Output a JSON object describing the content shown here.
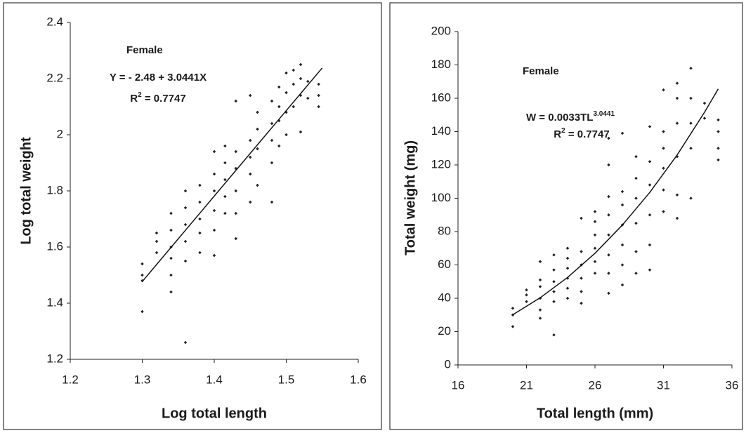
{
  "chart_data": [
    {
      "type": "scatter",
      "xlabel": "Log total length",
      "ylabel": "Log total weight",
      "annotations": {
        "label": "Female",
        "equation": "Y = - 2.48 + 3.0441X",
        "r2": {
          "base": "R",
          "sup": "2",
          "tail": " = 0.7747"
        }
      },
      "x": [
        1.3,
        1.3,
        1.3,
        1.3,
        1.32,
        1.32,
        1.32,
        1.34,
        1.34,
        1.34,
        1.34,
        1.34,
        1.34,
        1.36,
        1.36,
        1.36,
        1.36,
        1.36,
        1.36,
        1.38,
        1.38,
        1.38,
        1.38,
        1.38,
        1.4,
        1.4,
        1.4,
        1.4,
        1.4,
        1.4,
        1.415,
        1.415,
        1.415,
        1.415,
        1.415,
        1.43,
        1.43,
        1.43,
        1.43,
        1.43,
        1.43,
        1.45,
        1.45,
        1.45,
        1.45,
        1.45,
        1.46,
        1.46,
        1.46,
        1.46,
        1.48,
        1.48,
        1.48,
        1.48,
        1.48,
        1.49,
        1.49,
        1.49,
        1.49,
        1.5,
        1.5,
        1.5,
        1.5,
        1.51,
        1.51,
        1.51,
        1.52,
        1.52,
        1.52,
        1.52,
        1.53,
        1.53,
        1.545,
        1.545,
        1.545
      ],
      "values": [
        1.37,
        1.48,
        1.5,
        1.54,
        1.58,
        1.62,
        1.65,
        1.44,
        1.5,
        1.56,
        1.6,
        1.66,
        1.72,
        1.26,
        1.55,
        1.62,
        1.68,
        1.74,
        1.8,
        1.58,
        1.65,
        1.7,
        1.76,
        1.82,
        1.57,
        1.66,
        1.73,
        1.8,
        1.86,
        1.94,
        1.72,
        1.78,
        1.84,
        1.9,
        1.96,
        1.63,
        1.72,
        1.8,
        1.88,
        1.94,
        2.12,
        1.76,
        1.86,
        1.92,
        1.98,
        2.14,
        1.82,
        1.95,
        2.02,
        2.08,
        1.76,
        1.9,
        1.98,
        2.04,
        2.12,
        1.96,
        2.05,
        2.1,
        2.17,
        2.0,
        2.08,
        2.15,
        2.22,
        2.1,
        2.18,
        2.23,
        2.01,
        2.14,
        2.2,
        2.25,
        2.13,
        2.19,
        2.1,
        2.14,
        2.18
      ],
      "fit": {
        "x": [
          1.3,
          1.55
        ],
        "values": [
          1.477,
          2.238
        ]
      },
      "color": "#222222",
      "xlim": [
        1.2,
        1.6
      ],
      "xticks": [
        1.2,
        1.3,
        1.4,
        1.5,
        1.6
      ],
      "ylim": [
        1.2,
        2.4
      ],
      "yticks": [
        1.2,
        1.4,
        1.6,
        1.8,
        2,
        2.2,
        2.4
      ]
    },
    {
      "type": "scatter",
      "xlabel": "Total length (mm)",
      "ylabel": "Total weight (mg)",
      "annotations": {
        "label": "Female",
        "equation": {
          "base": "W = 0.0033TL",
          "sup": "3.0441"
        },
        "r2": {
          "base": "R",
          "sup": "2",
          "tail": " = 0.7747"
        }
      },
      "x": [
        20,
        20,
        20,
        21,
        21,
        21,
        22,
        22,
        22,
        22,
        22,
        22,
        23,
        23,
        23,
        23,
        23,
        23,
        24,
        24,
        24,
        24,
        24,
        24,
        25,
        25,
        25,
        25,
        25,
        25,
        26,
        26,
        26,
        26,
        26,
        26,
        27,
        27,
        27,
        27,
        27,
        27,
        27,
        27,
        28,
        28,
        28,
        28,
        28,
        28,
        28,
        29,
        29,
        29,
        29,
        29,
        29,
        30,
        30,
        30,
        30,
        30,
        30,
        31,
        31,
        31,
        31,
        31,
        31,
        32,
        32,
        32,
        32,
        32,
        32,
        33,
        33,
        33,
        33,
        33,
        34,
        34,
        35,
        35,
        35,
        35
      ],
      "values": [
        23,
        30,
        34,
        38,
        42,
        45,
        28,
        33,
        40,
        47,
        51,
        62,
        18,
        38,
        44,
        50,
        57,
        66,
        40,
        46,
        52,
        58,
        64,
        70,
        37,
        44,
        52,
        60,
        68,
        88,
        55,
        62,
        70,
        78,
        86,
        92,
        43,
        55,
        66,
        78,
        90,
        101,
        120,
        136,
        48,
        60,
        72,
        84,
        96,
        104,
        139,
        55,
        68,
        85,
        100,
        112,
        125,
        57,
        72,
        90,
        108,
        122,
        143,
        92,
        105,
        118,
        130,
        140,
        165,
        88,
        102,
        125,
        145,
        160,
        169,
        100,
        130,
        145,
        160,
        178,
        148,
        157,
        123,
        130,
        140,
        147
      ],
      "fit": {
        "x": [
          20,
          22,
          24,
          26,
          28,
          30,
          32,
          34,
          35
        ],
        "values": [
          30.1,
          40.3,
          52.5,
          67.0,
          83.9,
          103.5,
          126.0,
          151.6,
          165.6
        ]
      },
      "color": "#222222",
      "xlim": [
        16,
        36
      ],
      "xticks": [
        16,
        21,
        26,
        31,
        36
      ],
      "ylim": [
        0,
        200
      ],
      "yticks": [
        0,
        20,
        40,
        60,
        80,
        100,
        120,
        140,
        160,
        180,
        200
      ]
    }
  ]
}
